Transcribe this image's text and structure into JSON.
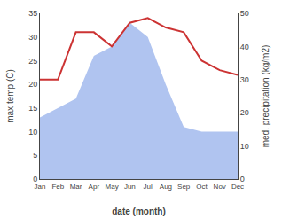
{
  "chart_data": {
    "type": "line",
    "categories": [
      "Jan",
      "Feb",
      "Mar",
      "Apr",
      "May",
      "Jun",
      "Jul",
      "Aug",
      "Sep",
      "Oct",
      "Nov",
      "Dec"
    ],
    "series": [
      {
        "type": "area",
        "color": "#b0c4f0",
        "values": [
          13,
          15,
          17,
          26,
          28,
          33,
          30,
          20,
          11,
          10,
          10,
          10
        ]
      },
      {
        "type": "line",
        "color": "#cc3333",
        "values": [
          21,
          21,
          31,
          31,
          28,
          33,
          34,
          32,
          31,
          25,
          23,
          22
        ]
      }
    ],
    "xlabel": "date (month)",
    "ylabel": "max temp (C)",
    "y2label": "med. precipitation (kg/m2)",
    "ylim": [
      0,
      35
    ],
    "yticks": [
      0,
      5,
      10,
      15,
      20,
      25,
      30,
      35
    ],
    "y2lim": [
      0,
      50
    ],
    "y2ticks": [
      0,
      10,
      20,
      30,
      40,
      50
    ],
    "grid": false
  }
}
